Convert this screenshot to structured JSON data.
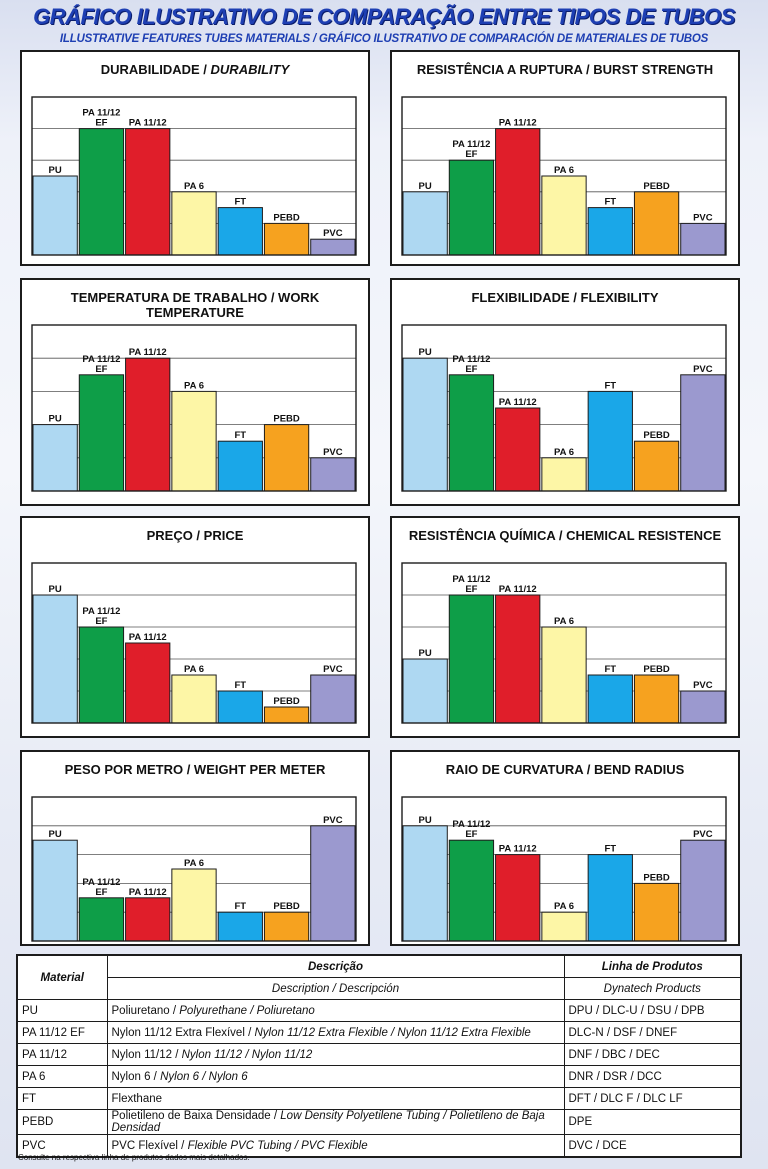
{
  "header": {
    "title": "GRÁFICO ILUSTRATIVO DE COMPARAÇÃO ENTRE TIPOS DE TUBOS",
    "subtitle": "ILLUSTRATIVE FEATURES TUBES MATERIALS / GRÁFICO ILUSTRATIVO DE COMPARACIÓN DE MATERIALES DE TUBOS"
  },
  "colors": {
    "PU": "#aed8f2",
    "PA 11/12 EF": "#0e9e48",
    "PA 11/12": "#e01e2a",
    "PA 6": "#fdf6a6",
    "FT": "#1aa7e8",
    "PEBD": "#f6a21f",
    "PVC": "#9b99cf"
  },
  "chart_data": [
    {
      "type": "bar",
      "title": "DURABILIDADE / ",
      "title_italic": "DURABILITY",
      "categories": [
        "PU",
        "PA 11/12 EF",
        "PA 11/12",
        "PA 6",
        "FT",
        "PEBD",
        "PVC"
      ],
      "labels": [
        [
          "PU"
        ],
        [
          "PA 11/12",
          "EF"
        ],
        [
          "PA 11/12"
        ],
        [
          "PA 6"
        ],
        [
          "FT"
        ],
        [
          "PEBD"
        ],
        [
          "PVC"
        ]
      ],
      "values": [
        50,
        80,
        80,
        40,
        30,
        20,
        10
      ],
      "ylim": [
        0,
        100
      ]
    },
    {
      "type": "bar",
      "title": "RESISTÊNCIA A RUPTURA / BURST STRENGTH",
      "title_italic": "",
      "categories": [
        "PU",
        "PA 11/12 EF",
        "PA 11/12",
        "PA 6",
        "FT",
        "PEBD",
        "PVC"
      ],
      "labels": [
        [
          "PU"
        ],
        [
          "PA 11/12",
          "EF"
        ],
        [
          "PA 11/12"
        ],
        [
          "PA 6"
        ],
        [
          "FT"
        ],
        [
          "PEBD"
        ],
        [
          "PVC"
        ]
      ],
      "values": [
        40,
        60,
        80,
        50,
        30,
        40,
        20
      ],
      "ylim": [
        0,
        100
      ]
    },
    {
      "type": "bar",
      "title": "TEMPERATURA DE TRABALHO / WORK TEMPERATURE",
      "title_italic": "",
      "categories": [
        "PU",
        "PA 11/12 EF",
        "PA 11/12",
        "PA 6",
        "FT",
        "PEBD",
        "PVC"
      ],
      "labels": [
        [
          "PU"
        ],
        [
          "PA 11/12",
          "EF"
        ],
        [
          "PA 11/12"
        ],
        [
          "PA 6"
        ],
        [
          "FT"
        ],
        [
          "PEBD"
        ],
        [
          "PVC"
        ]
      ],
      "values": [
        40,
        70,
        80,
        60,
        30,
        40,
        20
      ],
      "ylim": [
        0,
        100
      ]
    },
    {
      "type": "bar",
      "title": "FLEXIBILIDADE / FLEXIBILITY",
      "title_italic": "",
      "categories": [
        "PU",
        "PA 11/12 EF",
        "PA 11/12",
        "PA 6",
        "FT",
        "PEBD",
        "PVC"
      ],
      "labels": [
        [
          "PU"
        ],
        [
          "PA 11/12",
          "EF"
        ],
        [
          "PA 11/12"
        ],
        [
          "PA 6"
        ],
        [
          "FT"
        ],
        [
          "PEBD"
        ],
        [
          "PVC"
        ]
      ],
      "values": [
        80,
        70,
        50,
        20,
        60,
        30,
        70
      ],
      "ylim": [
        0,
        100
      ]
    },
    {
      "type": "bar",
      "title": "PREÇO / PRICE",
      "title_italic": "",
      "categories": [
        "PU",
        "PA 11/12 EF",
        "PA 11/12",
        "PA 6",
        "FT",
        "PEBD",
        "PVC"
      ],
      "labels": [
        [
          "PU"
        ],
        [
          "PA 11/12",
          "EF"
        ],
        [
          "PA 11/12"
        ],
        [
          "PA 6"
        ],
        [
          "FT"
        ],
        [
          "PEBD"
        ],
        [
          "PVC"
        ]
      ],
      "values": [
        80,
        60,
        50,
        30,
        20,
        10,
        30
      ],
      "ylim": [
        0,
        100
      ]
    },
    {
      "type": "bar",
      "title": "RESISTÊNCIA QUÍMICA / CHEMICAL RESISTENCE",
      "title_italic": "",
      "categories": [
        "PU",
        "PA 11/12 EF",
        "PA 11/12",
        "PA 6",
        "FT",
        "PEBD",
        "PVC"
      ],
      "labels": [
        [
          "PU"
        ],
        [
          "PA 11/12",
          "EF"
        ],
        [
          "PA 11/12"
        ],
        [
          "PA 6"
        ],
        [
          "FT"
        ],
        [
          "PEBD"
        ],
        [
          "PVC"
        ]
      ],
      "values": [
        40,
        80,
        80,
        60,
        30,
        30,
        20
      ],
      "ylim": [
        0,
        100
      ]
    },
    {
      "type": "bar",
      "title": "PESO POR METRO / WEIGHT PER METER",
      "title_italic": "",
      "categories": [
        "PU",
        "PA 11/12 EF",
        "PA 11/12",
        "PA 6",
        "FT",
        "PEBD",
        "PVC"
      ],
      "labels": [
        [
          "PU"
        ],
        [
          "PA 11/12",
          "EF"
        ],
        [
          "PA 11/12"
        ],
        [
          "PA 6"
        ],
        [
          "FT"
        ],
        [
          "PEBD"
        ],
        [
          "PVC"
        ]
      ],
      "values": [
        70,
        30,
        30,
        50,
        20,
        20,
        80
      ],
      "ylim": [
        0,
        100
      ]
    },
    {
      "type": "bar",
      "title": "RAIO DE CURVATURA / BEND RADIUS",
      "title_italic": "",
      "categories": [
        "PU",
        "PA 11/12 EF",
        "PA 11/12",
        "PA 6",
        "FT",
        "PEBD",
        "PVC"
      ],
      "labels": [
        [
          "PU"
        ],
        [
          "PA 11/12",
          "EF"
        ],
        [
          "PA 11/12"
        ],
        [
          "PA 6"
        ],
        [
          "FT"
        ],
        [
          "PEBD"
        ],
        [
          "PVC"
        ]
      ],
      "values": [
        80,
        70,
        60,
        20,
        60,
        40,
        70
      ],
      "ylim": [
        0,
        100
      ]
    }
  ],
  "legend_table": {
    "headers": {
      "material": "Material",
      "descricao": "Descrição",
      "linha": "Linha de Produtos"
    },
    "subheaders": {
      "descricao": "Description / Descripción",
      "linha": "Dynatech Products"
    },
    "rows": [
      {
        "material": "PU",
        "d1": "Poliuretano / ",
        "d2": "Polyurethane / Poliuretano",
        "linha": "DPU / DLC-U / DSU / DPB"
      },
      {
        "material": "PA 11/12 EF",
        "d1": "Nylon 11/12 Extra Flexível / ",
        "d2": "Nylon 11/12 Extra Flexible / Nylon 11/12 Extra Flexible",
        "linha": "DLC-N / DSF / DNEF"
      },
      {
        "material": "PA 11/12",
        "d1": "Nylon 11/12 / ",
        "d2": "Nylon 11/12 / Nylon 11/12",
        "linha": "DNF / DBC / DEC"
      },
      {
        "material": "PA 6",
        "d1": "Nylon 6 / ",
        "d2": "Nylon 6 / Nylon 6",
        "linha": "DNR / DSR / DCC"
      },
      {
        "material": "FT",
        "d1": "Flexthane",
        "d2": "",
        "linha": "DFT / DLC F / DLC LF"
      },
      {
        "material": "PEBD",
        "d1": "Polietileno de Baixa Densidade / ",
        "d2": "Low Density Polyetilene Tubing / Polietileno de Baja Densidad",
        "linha": "DPE"
      },
      {
        "material": "PVC",
        "d1": "PVC Flexível / ",
        "d2": "Flexible PVC Tubing / PVC Flexible",
        "linha": "DVC / DCE"
      }
    ]
  },
  "footnote": "Consulte na respectiva linha de produtos dados mais detalhados."
}
